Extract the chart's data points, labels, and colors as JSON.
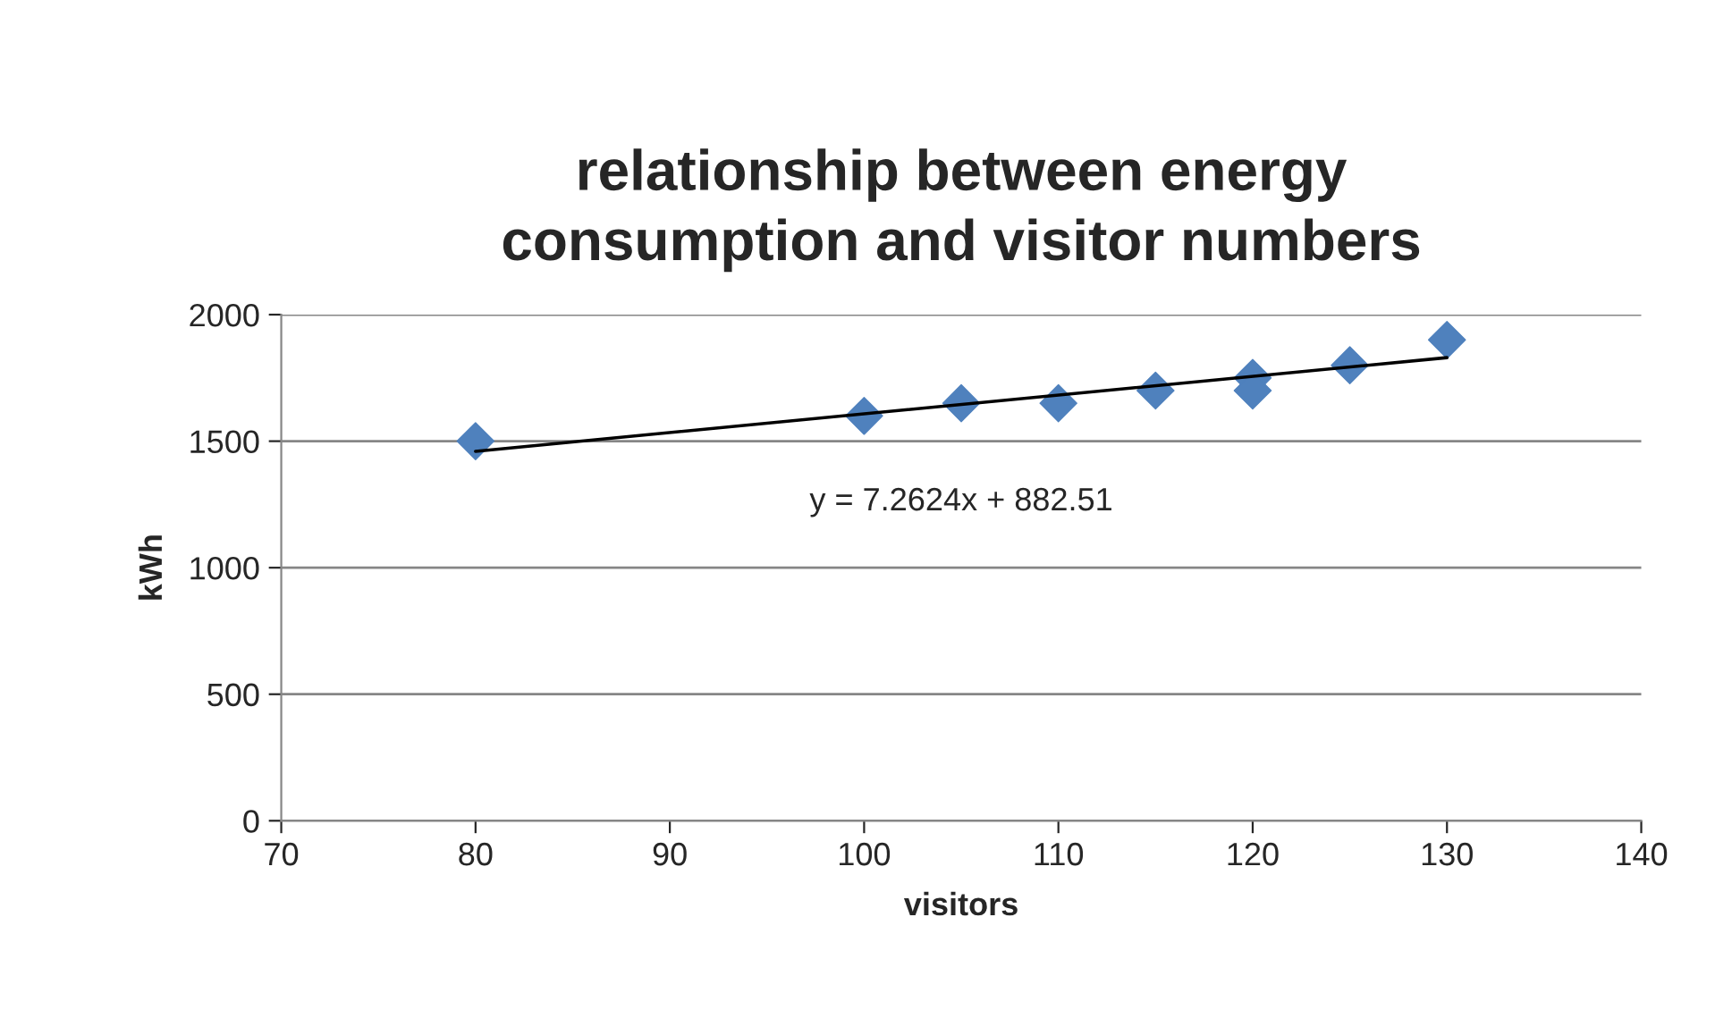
{
  "chart_data": {
    "type": "scatter",
    "title": "relationship between energy\nconsumption and visitor numbers",
    "xlabel": "visitors",
    "ylabel": "kWh",
    "series": [
      {
        "color": "#4f81bd",
        "marker": "diamond",
        "x": [
          80,
          100,
          105,
          110,
          115,
          120,
          120,
          125,
          130
        ],
        "values": [
          1500,
          1600,
          1650,
          1650,
          1700,
          1750,
          1700,
          1800,
          1900
        ]
      },
      {
        "type": "line",
        "color": "#000000",
        "marker": "none",
        "line_style": "solid",
        "x": [
          80,
          130
        ],
        "values": [
          1460,
          1830
        ]
      }
    ],
    "annotations": [
      "y = 7.2624x + 882.51"
    ],
    "xlim": [
      70,
      140
    ],
    "xticks": [
      70,
      80,
      90,
      100,
      110,
      120,
      130,
      140
    ],
    "ylim": [
      0,
      2000
    ],
    "yticks": [
      0,
      500,
      1000,
      1500,
      2000
    ],
    "grid": "y",
    "legend": false
  }
}
